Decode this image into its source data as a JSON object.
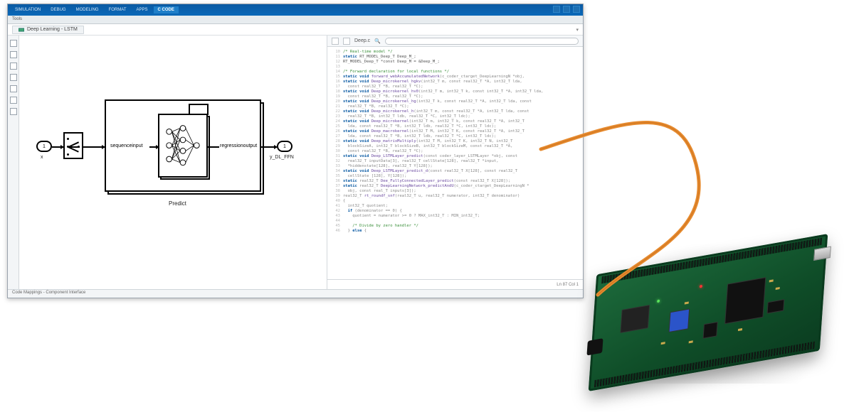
{
  "app": {
    "tabs": [
      "SIMULATION",
      "DEBUG",
      "MODELING",
      "FORMAT",
      "APPS",
      "C CODE"
    ],
    "active_tab_index": 5,
    "subbar_label": "Tools",
    "breadcrumb_label": "Deep Learning - LSTM",
    "statusbar_text": "Code Mappings - Component Interface",
    "colors": {
      "menubar": "#0a5aa3",
      "active_tab": "#1e7fc9"
    }
  },
  "diagram": {
    "inport_label": "1",
    "inport_name": "x",
    "outport_label": "1",
    "outport_name": "y_DL_FFN",
    "seq_label": "sequenceinput",
    "reg_label": "regressionoutput",
    "predict_label": "Predict"
  },
  "code": {
    "tab_label": "Code",
    "breadcrumb": "Deep.c",
    "search_placeholder": "Q",
    "footer_left": "",
    "footer_right": "Ln 87  Col 1",
    "lines": [
      {
        "n": 10,
        "html": "<span class='c-cm'>/* Real-time model */</span>"
      },
      {
        "n": 11,
        "html": "<span class='c-kw'>static</span> <span class='c-id'>RT_MODEL_Deep_T Deep_M_;</span>"
      },
      {
        "n": 12,
        "html": "<span class='c-id'>RT_MODEL_Deep_T *const Deep_M = &Deep_M_;</span>"
      },
      {
        "n": 13,
        "html": ""
      },
      {
        "n": 14,
        "html": "<span class='c-cm'>/* Forward declaration for local functions */</span>"
      },
      {
        "n": 15,
        "html": "<span class='c-kw'>static void</span> <span class='c-fn'>forward_webAccumulatedNetwork</span>(c_coder_ctarget_DeepLearningN *obj,"
      },
      {
        "n": 16,
        "html": "<span class='c-kw'>static void</span> <span class='c-fn'>Deep_microkernel_hgkv</span>(int32_T m, const real32_T *A, int32_T lda,"
      },
      {
        "n": 17,
        "html": "  const real32_T *B, real32_T *C);"
      },
      {
        "n": 18,
        "html": "<span class='c-kw'>static void</span> <span class='c-fn'>Deep_microkernel_hv0</span>(int32_T m, int32_T k, const int32_T *A, int32_T lda,"
      },
      {
        "n": 19,
        "html": "  const real32_T *B, real32_T *C);"
      },
      {
        "n": 20,
        "html": "<span class='c-kw'>static void</span> <span class='c-fn'>Deep_microkernel_hg</span>(int32_T k, const real32_T *A, int32_T lda, const"
      },
      {
        "n": 21,
        "html": "  real32_T *B, real32_T *C);"
      },
      {
        "n": 22,
        "html": "<span class='c-kw'>static void</span> <span class='c-fn'>Deep_microkernel_h</span>(int32_T m, const real32_T *A, int32_T lda, const"
      },
      {
        "n": 23,
        "html": "  real32_T *B, int32_T ldb, real32_T *C, int32_T ldc);"
      },
      {
        "n": 24,
        "html": "<span class='c-kw'>static void</span> <span class='c-fn'>Deep_microkernel</span>(int32_T m, int32_T k, const real32_T *A, int32_T"
      },
      {
        "n": 25,
        "html": "  lda, const real32_T *B, int32_T ldb, real32_T *C, int32_T ldc);"
      },
      {
        "n": 26,
        "html": "<span class='c-kw'>static void</span> <span class='c-fn'>Deep_macrokernel</span>(int32_T M, int32_T K, const real32_T *A, int32_T"
      },
      {
        "n": 27,
        "html": "  lda, const real32_T *B, int32_T ldb, real32_T *C, int32_T ldc);"
      },
      {
        "n": 28,
        "html": "<span class='c-kw'>static void</span> <span class='c-fn'>Deep_matrixMultiply</span>(int32_T M, int32_T K, int32_T N, int32_T"
      },
      {
        "n": 29,
        "html": "  blockSizeA, int32_T blockSizeB, int32_T blockSizeM, const real32_T *A,"
      },
      {
        "n": 30,
        "html": "  const real32_T *B, real32_T *C);"
      },
      {
        "n": 31,
        "html": "<span class='c-kw'>static void</span> <span class='c-fn'>Deep_LSTMLayer_predict</span>(const coder_layer_LSTMLayer *obj, const"
      },
      {
        "n": 32,
        "html": "  real32_T inputData[3], real32_T cellState[128], real32_T *input,"
      },
      {
        "n": 33,
        "html": "  *hiddenstate[128], real32_T Y[128]);"
      },
      {
        "n": 34,
        "html": "<span class='c-kw'>static void</span> <span class='c-fn'>Deep_LSTMLayer_predict_d</span>(const real32_T X[128], const real32_T"
      },
      {
        "n": 35,
        "html": "  cellState [128], Y[128]);"
      },
      {
        "n": 36,
        "html": "<span class='c-kw'>static</span> real32_T <span class='c-fn'>Dee_FullyConnectedLayer_predict</span>(const real32_T X[128]);"
      },
      {
        "n": 37,
        "html": "<span class='c-kw'>static</span> real32_T <span class='c-fn'>DeepLearningNetwork_predictAndU</span>(c_coder_ctarget_DeepLearningN *"
      },
      {
        "n": 38,
        "html": "  obj, const real_T inputs[3]);"
      },
      {
        "n": 39,
        "html": "real32_T <span class='c-fn'>rt_roundf_snf</span>(real32_T u, real32_T numerator, int32_T denominator)"
      },
      {
        "n": 40,
        "html": "{"
      },
      {
        "n": 41,
        "html": "  int32_T quotient;"
      },
      {
        "n": 42,
        "html": "  <span class='c-kw'>if</span> (denominator == 0) {"
      },
      {
        "n": 43,
        "html": "    quotient = numerator &gt;= 0 ? MAX_int32_T : MIN_int32_T;"
      },
      {
        "n": 44,
        "html": ""
      },
      {
        "n": 45,
        "html": "    <span class='c-cm'>/* Divide by zero handler */</span>"
      },
      {
        "n": 46,
        "html": "  } <span class='c-kw'>else</span> {"
      }
    ]
  },
  "board": {
    "pcb_color": "#0f4d28",
    "accent_blue": "#2b54c9",
    "cable_color": "#e68a2e"
  }
}
